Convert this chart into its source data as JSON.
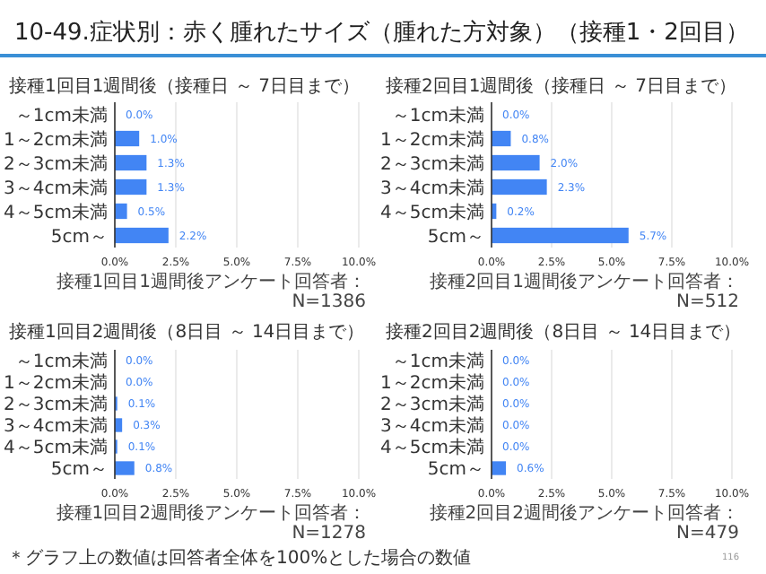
{
  "chart_data": [
    {
      "type": "other",
      "title": "10-49.症状別：赤く腫れたサイズ（腫れた方対象）（接種1・2回目）",
      "annotations": [
        "＊グラフ上の数値は回答者全体を100%とした場合の数値",
        "116"
      ]
    },
    {
      "type": "bar",
      "orientation": "horizontal",
      "title": "接種1回目1週間後（接種日 ～ 7日目まで）",
      "categories": [
        "～1cm未満",
        "1～2cm未満",
        "2～3cm未満",
        "3～4cm未満",
        "4～5cm未満",
        "5cm～"
      ],
      "values": [
        0,
        1.0,
        1.3,
        1.3,
        0.5,
        2.2
      ],
      "value_labels": [
        "0.0%",
        "1.0%",
        "1.3%",
        "1.3%",
        "0.5%",
        "2.2%"
      ],
      "color": "#4285f4",
      "xlim": [
        0,
        10
      ],
      "xticks": [
        {
          "value": 0,
          "label": "0.0%"
        },
        {
          "value": 2.5,
          "label": "2.5%"
        },
        {
          "value": 5,
          "label": "5.0%"
        },
        {
          "value": 7.5,
          "label": "7.5%"
        },
        {
          "value": 10,
          "label": "10.0%"
        }
      ],
      "grid": "x",
      "annotations": [
        "接種1回目1週間後アンケート回答者：N=1386"
      ]
    },
    {
      "type": "bar",
      "orientation": "horizontal",
      "title": "接種2回目1週間後（接種日 ～ 7日目まで）",
      "categories": [
        "～1cm未満",
        "1～2cm未満",
        "2～3cm未満",
        "3～4cm未満",
        "4～5cm未満",
        "5cm～"
      ],
      "values": [
        0,
        0.8,
        2.0,
        2.3,
        0.2,
        5.7
      ],
      "value_labels": [
        "0.0%",
        "0.8%",
        "2.0%",
        "2.3%",
        "0.2%",
        "5.7%"
      ],
      "color": "#4285f4",
      "xlim": [
        0,
        10
      ],
      "xticks": [
        {
          "value": 0,
          "label": "0.0%"
        },
        {
          "value": 2.5,
          "label": "2.5%"
        },
        {
          "value": 5,
          "label": "5.0%"
        },
        {
          "value": 7.5,
          "label": "7.5%"
        },
        {
          "value": 10,
          "label": "10.0%"
        }
      ],
      "grid": "x",
      "annotations": [
        "接種2回目1週間後アンケート回答者：N=512"
      ]
    },
    {
      "type": "bar",
      "orientation": "horizontal",
      "title": "接種1回目2週間後（8日目 ～ 14日目まで）",
      "categories": [
        "～1cm未満",
        "1～2cm未満",
        "2～3cm未満",
        "3～4cm未満",
        "4～5cm未満",
        "5cm～"
      ],
      "values": [
        0,
        0,
        0.1,
        0.3,
        0.1,
        0.8
      ],
      "value_labels": [
        "0.0%",
        "0.0%",
        "0.1%",
        "0.3%",
        "0.1%",
        "0.8%"
      ],
      "color": "#4285f4",
      "xlim": [
        0,
        10
      ],
      "xticks": [
        {
          "value": 0,
          "label": "0.0%"
        },
        {
          "value": 2.5,
          "label": "2.5%"
        },
        {
          "value": 5,
          "label": "5.0%"
        },
        {
          "value": 7.5,
          "label": "7.5%"
        },
        {
          "value": 10,
          "label": "10.0%"
        }
      ],
      "grid": "x",
      "annotations": [
        "接種1回目2週間後アンケート回答者：N=1278"
      ]
    },
    {
      "type": "bar",
      "orientation": "horizontal",
      "title": "接種2回目2週間後（8日目 ～ 14日目まで）",
      "categories": [
        "～1cm未満",
        "1～2cm未満",
        "2～3cm未満",
        "3～4cm未満",
        "4～5cm未満",
        "5cm～"
      ],
      "values": [
        0,
        0,
        0,
        0,
        0,
        0.6
      ],
      "value_labels": [
        "0.0%",
        "0.0%",
        "0.0%",
        "0.0%",
        "0.0%",
        "0.6%"
      ],
      "color": "#4285f4",
      "xlim": [
        0,
        10
      ],
      "xticks": [
        {
          "value": 0,
          "label": "0.0%"
        },
        {
          "value": 2.5,
          "label": "2.5%"
        },
        {
          "value": 5,
          "label": "5.0%"
        },
        {
          "value": 7.5,
          "label": "7.5%"
        },
        {
          "value": 10,
          "label": "10.0%"
        }
      ],
      "grid": "x",
      "annotations": [
        "接種2回目2週間後アンケート回答者：N=479"
      ]
    }
  ]
}
